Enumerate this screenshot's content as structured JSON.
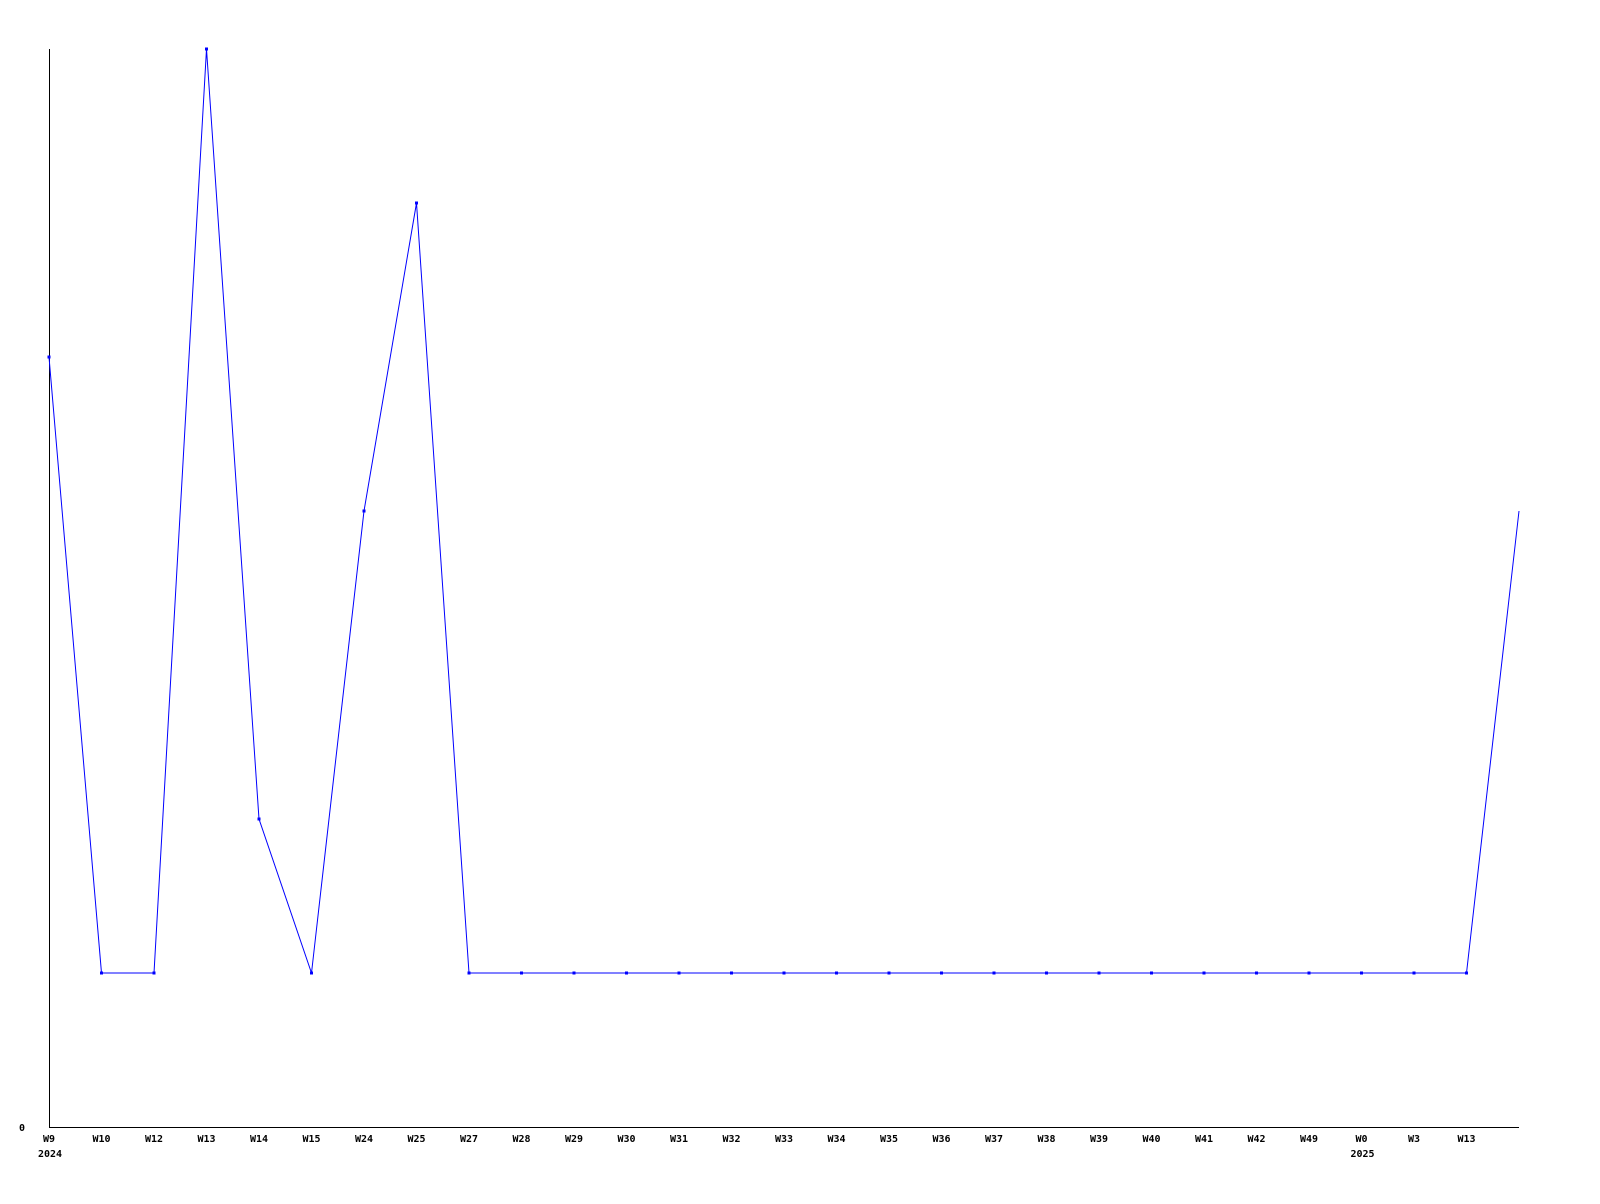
{
  "chart_data": {
    "type": "line",
    "categories": [
      "W9",
      "W10",
      "W12",
      "W13",
      "W14",
      "W15",
      "W24",
      "W25",
      "W27",
      "W28",
      "W29",
      "W30",
      "W31",
      "W32",
      "W33",
      "W34",
      "W35",
      "W36",
      "W37",
      "W38",
      "W39",
      "W40",
      "W41",
      "W42",
      "W49",
      "W0",
      "W3",
      "W13",
      ""
    ],
    "year_labels": [
      {
        "category_index": 0,
        "label": "2024"
      },
      {
        "category_index": 25,
        "label": "2025"
      }
    ],
    "series": [
      {
        "values": [
          5,
          1,
          1,
          7,
          2,
          1,
          4,
          6,
          1,
          1,
          1,
          1,
          1,
          1,
          1,
          1,
          1,
          1,
          1,
          1,
          1,
          1,
          1,
          1,
          1,
          1,
          1,
          1,
          4
        ],
        "color": "#0000ff"
      }
    ],
    "y_tick_labels": [
      "0"
    ],
    "ylim": [
      0,
      7
    ],
    "grid": false,
    "title": "",
    "xlabel": "",
    "ylabel": ""
  }
}
